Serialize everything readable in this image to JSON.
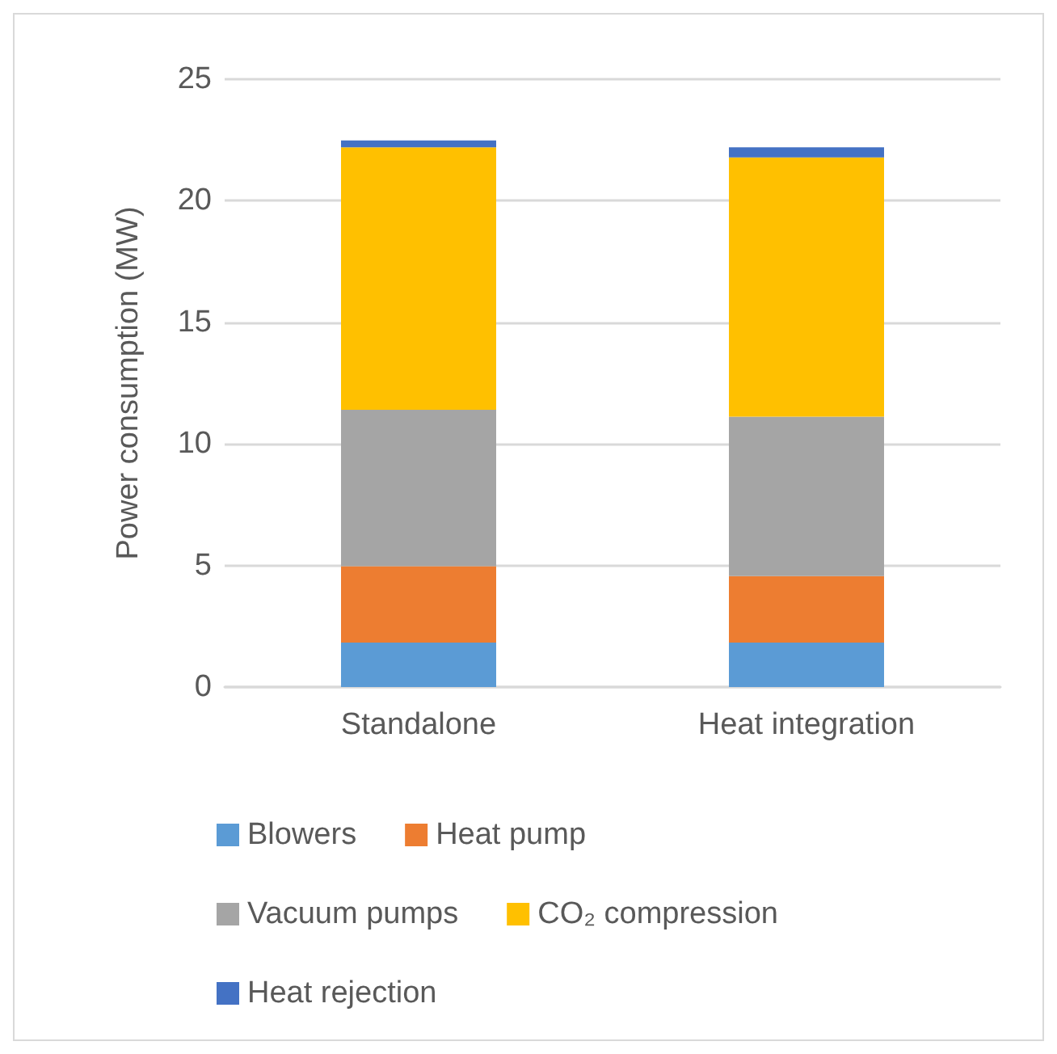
{
  "chart_data": {
    "type": "bar",
    "stacked": true,
    "ylabel": "Power consumption (MW)",
    "categories": [
      "Standalone",
      "Heat integration"
    ],
    "series": [
      {
        "name": "Blowers",
        "color": "#5b9bd5",
        "values": [
          1.83,
          1.83
        ]
      },
      {
        "name": "Heat pump",
        "color": "#ed7d31",
        "values": [
          3.14,
          2.73
        ]
      },
      {
        "name": "Vacuum pumps",
        "color": "#a5a5a5",
        "values": [
          6.43,
          6.56
        ]
      },
      {
        "name": "CO₂ compression",
        "color": "#ffc000",
        "values": [
          10.8,
          10.66
        ]
      },
      {
        "name": "Heat rejection",
        "color": "#4472c4",
        "values": [
          0.28,
          0.42
        ]
      }
    ],
    "ylim": [
      0,
      25
    ],
    "yticks": [
      0,
      5,
      10,
      15,
      20,
      25
    ],
    "grid": "y",
    "legend": "bottom"
  }
}
